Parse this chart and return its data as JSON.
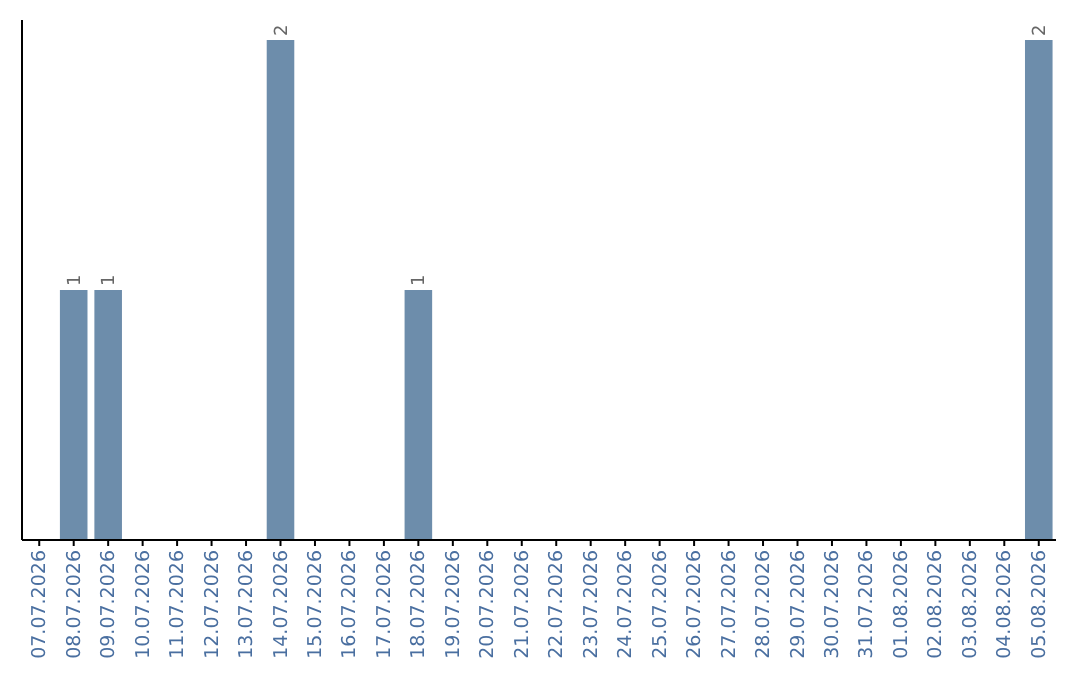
{
  "chart_data": {
    "type": "bar",
    "categories": [
      "07.07.2026",
      "08.07.2026",
      "09.07.2026",
      "10.07.2026",
      "11.07.2026",
      "12.07.2026",
      "13.07.2026",
      "14.07.2026",
      "15.07.2026",
      "16.07.2026",
      "17.07.2026",
      "18.07.2026",
      "19.07.2026",
      "20.07.2026",
      "21.07.2026",
      "22.07.2026",
      "23.07.2026",
      "24.07.2026",
      "25.07.2026",
      "26.07.2026",
      "27.07.2026",
      "28.07.2026",
      "29.07.2026",
      "30.07.2026",
      "31.07.2026",
      "01.08.2026",
      "02.08.2026",
      "03.08.2026",
      "04.08.2026",
      "05.08.2026"
    ],
    "values": [
      0,
      1,
      1,
      0,
      0,
      0,
      0,
      2,
      0,
      0,
      0,
      1,
      0,
      0,
      0,
      0,
      0,
      0,
      0,
      0,
      0,
      0,
      0,
      0,
      0,
      0,
      0,
      0,
      0,
      2
    ],
    "value_labels": [
      null,
      "1",
      "1",
      null,
      null,
      null,
      null,
      "2",
      null,
      null,
      null,
      "1",
      null,
      null,
      null,
      null,
      null,
      null,
      null,
      null,
      null,
      null,
      null,
      null,
      null,
      null,
      null,
      null,
      null,
      "2"
    ],
    "color": "#6d8dab"
  }
}
